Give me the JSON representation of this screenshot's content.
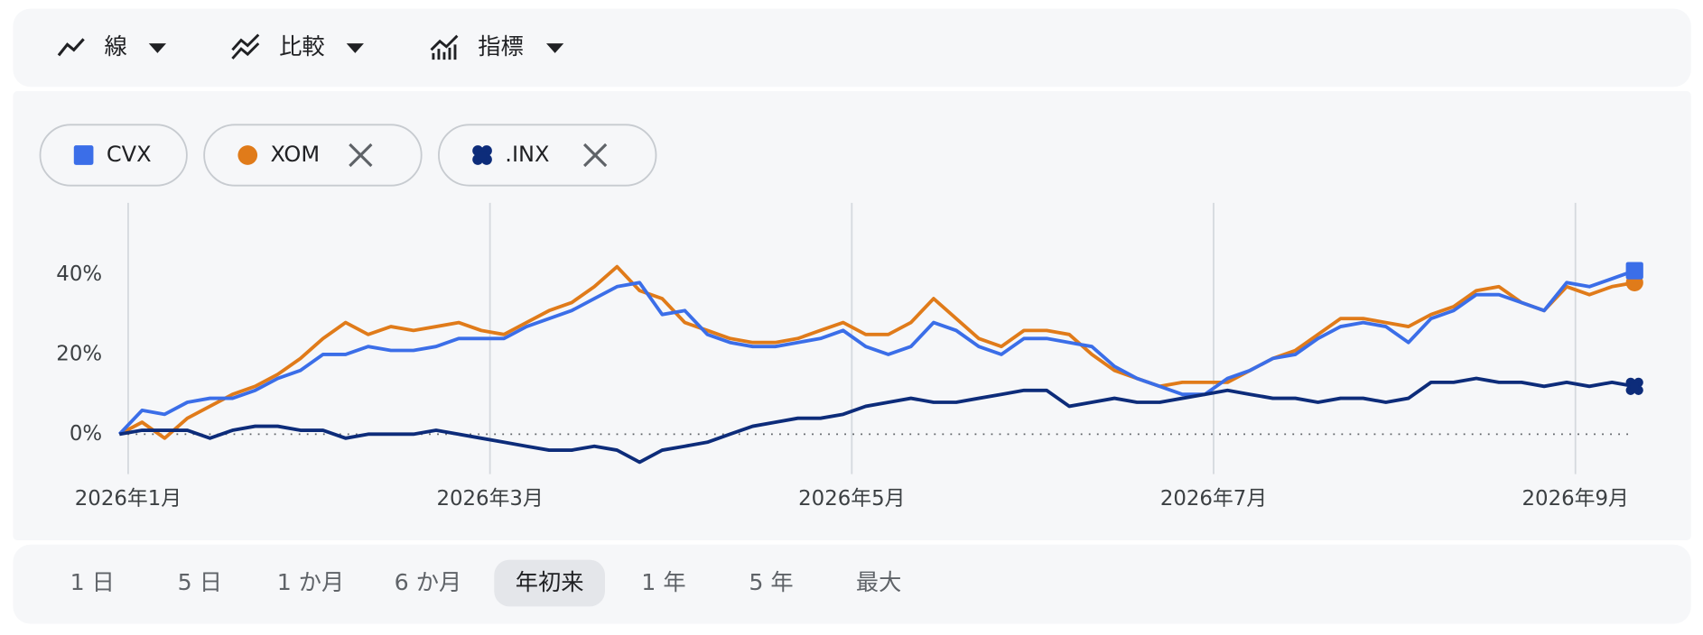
{
  "toolbar": {
    "items": [
      "線",
      "比較",
      "指標"
    ]
  },
  "chart_data": {
    "type": "line",
    "categories": [
      "2026年1月",
      null,
      null,
      null,
      null,
      null,
      null,
      null,
      null,
      null,
      null,
      null,
      null,
      null,
      null,
      null,
      "2026年3月",
      null,
      null,
      null,
      null,
      null,
      null,
      null,
      null,
      null,
      null,
      null,
      null,
      null,
      null,
      null,
      "2026年5月",
      null,
      null,
      null,
      null,
      null,
      null,
      null,
      null,
      null,
      null,
      null,
      null,
      null,
      null,
      null,
      "2026年7月",
      null,
      null,
      null,
      null,
      null,
      null,
      null,
      null,
      null,
      null,
      null,
      null,
      null,
      null,
      null,
      "2026年9月",
      null,
      null,
      null
    ],
    "series": [
      {
        "name": "CVX",
        "color": "#3b6ee8",
        "marker": "square",
        "removable": false,
        "values": [
          0,
          6,
          5,
          8,
          9,
          9,
          11,
          14,
          16,
          20,
          20,
          22,
          21,
          21,
          22,
          24,
          24,
          24,
          27,
          29,
          31,
          34,
          37,
          38,
          30,
          31,
          25,
          23,
          22,
          22,
          23,
          24,
          26,
          22,
          20,
          22,
          28,
          26,
          22,
          20,
          24,
          24,
          23,
          22,
          17,
          14,
          12,
          10,
          10,
          14,
          16,
          19,
          20,
          24,
          27,
          28,
          27,
          23,
          29,
          31,
          35,
          35,
          33,
          31,
          38,
          37,
          39,
          41
        ]
      },
      {
        "name": "XOM",
        "color": "#e07b1a",
        "marker": "circle",
        "removable": true,
        "values": [
          0,
          3,
          -1,
          4,
          7,
          10,
          12,
          15,
          19,
          24,
          28,
          25,
          27,
          26,
          27,
          28,
          26,
          25,
          28,
          31,
          33,
          37,
          42,
          36,
          34,
          28,
          26,
          24,
          23,
          23,
          24,
          26,
          28,
          25,
          25,
          28,
          34,
          29,
          24,
          22,
          26,
          26,
          25,
          20,
          16,
          14,
          12,
          13,
          13,
          13,
          16,
          19,
          21,
          25,
          29,
          29,
          28,
          27,
          30,
          32,
          36,
          37,
          33,
          31,
          37,
          35,
          37,
          38
        ]
      },
      {
        "name": ".INX",
        "color": "#0d2c7a",
        "marker": "clover",
        "removable": true,
        "values": [
          0,
          1,
          1,
          1,
          -1,
          1,
          2,
          2,
          1,
          1,
          -1,
          0,
          0,
          0,
          1,
          0,
          -1,
          -2,
          -3,
          -4,
          -4,
          -3,
          -4,
          -7,
          -4,
          -3,
          -2,
          0,
          2,
          3,
          4,
          4,
          5,
          7,
          8,
          9,
          8,
          8,
          9,
          10,
          11,
          11,
          7,
          8,
          9,
          8,
          8,
          9,
          10,
          11,
          10,
          9,
          9,
          8,
          9,
          9,
          8,
          9,
          13,
          13,
          14,
          13,
          13,
          12,
          13,
          12,
          13,
          12
        ]
      }
    ],
    "ylim": [
      -10,
      58
    ],
    "yticks": [
      {
        "value": 0,
        "label": "0%"
      },
      {
        "value": 20,
        "label": "20%"
      },
      {
        "value": 40,
        "label": "40%"
      }
    ],
    "zero_line": "dotted",
    "x_grid": true
  },
  "ranges": {
    "items": [
      "1 日",
      "5 日",
      "1 か月",
      "6 か月",
      "年初来",
      "1 年",
      "5 年",
      "最大"
    ],
    "selected_index": 4
  }
}
